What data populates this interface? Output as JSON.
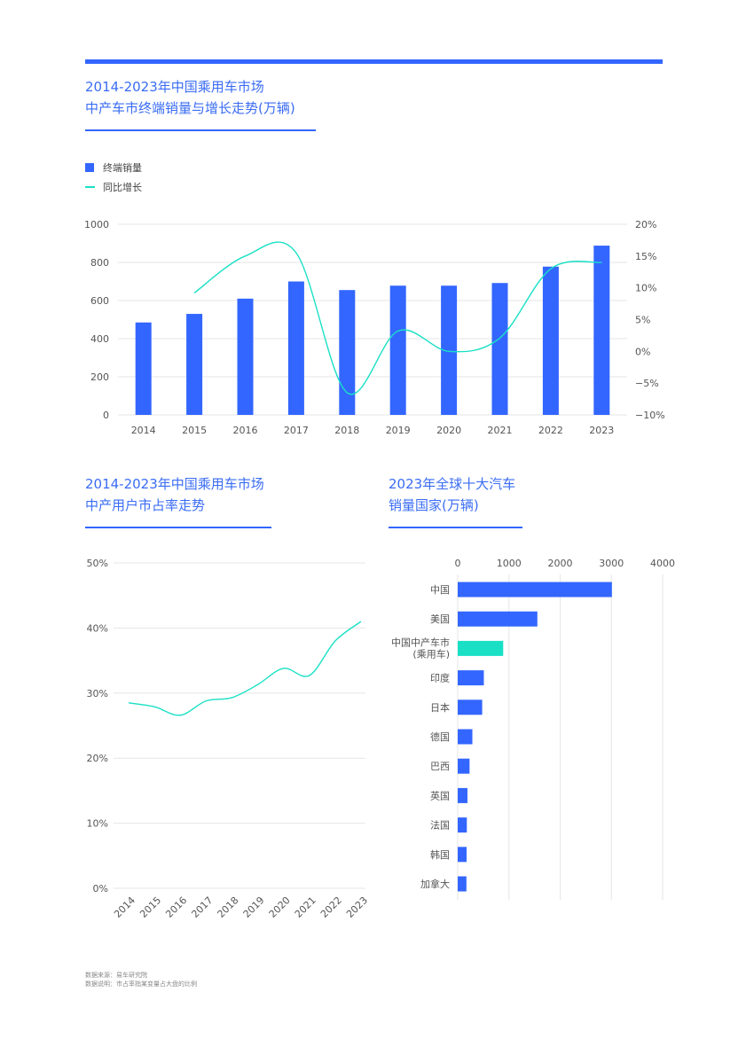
{
  "colors": {
    "accent": "#3366ff",
    "teal": "#19e0c5",
    "grid": "#e6e6e6",
    "title": "#3a6cf4"
  },
  "chart1": {
    "title_line1": "2014-2023年中国乘用车市场",
    "title_line2": "中产车市终端销量与增长走势(万辆)",
    "legend_bar": "终端销量",
    "legend_line": "同比增长"
  },
  "chart2": {
    "title_line1": "2014-2023年中国乘用车市场",
    "title_line2": "中产用户市占率走势"
  },
  "chart3": {
    "title_line1": "2023年全球十大汽车",
    "title_line2": "销量国家(万辆)"
  },
  "notes": {
    "source": "数据来源：易车研究院",
    "explain": "数据说明：市占率指某变量占大盘的比例"
  },
  "chart_data": [
    {
      "type": "bar",
      "title": "2014-2023年中国乘用车市场中产车市终端销量与增长走势(万辆)",
      "categories": [
        "2014",
        "2015",
        "2016",
        "2017",
        "2018",
        "2019",
        "2020",
        "2021",
        "2022",
        "2023"
      ],
      "series": [
        {
          "name": "终端销量",
          "type": "bar",
          "axis": "left",
          "values": [
            485,
            530,
            610,
            700,
            655,
            678,
            678,
            692,
            778,
            888
          ]
        },
        {
          "name": "同比增长",
          "type": "line",
          "axis": "right",
          "values": [
            null,
            9.2,
            15.0,
            15.5,
            -6.5,
            3.2,
            0.0,
            2.1,
            13.0,
            14.0
          ]
        }
      ],
      "ylim": [
        0,
        1000
      ],
      "yticks": [
        0,
        200,
        400,
        600,
        800,
        1000
      ],
      "y2lim": [
        -10,
        20
      ],
      "y2ticks": [
        "−10%",
        "−5%",
        "0%",
        "5%",
        "10%",
        "15%",
        "20%"
      ],
      "grid": true,
      "legend": "top-left"
    },
    {
      "type": "line",
      "title": "2014-2023年中国乘用车市场中产用户市占率走势",
      "categories": [
        "2014",
        "2015",
        "2016",
        "2017",
        "2018",
        "2019",
        "2020",
        "2021",
        "2022",
        "2023"
      ],
      "series": [
        {
          "values": [
            28.5,
            27.9,
            26.6,
            28.8,
            29.3,
            31.3,
            33.8,
            32.7,
            38.0,
            41.0
          ]
        }
      ],
      "ylim": [
        0,
        50
      ],
      "yticks": [
        "0%",
        "10%",
        "20%",
        "30%",
        "40%",
        "50%"
      ],
      "grid": true
    },
    {
      "type": "bar",
      "orientation": "horizontal",
      "title": "2023年全球十大汽车销量国家(万辆)",
      "categories": [
        "中国",
        "美国",
        "中国中产车市(乘用车)",
        "印度",
        "日本",
        "德国",
        "巴西",
        "英国",
        "法国",
        "韩国",
        "加拿大"
      ],
      "category_labels": [
        [
          "中国"
        ],
        [
          "美国"
        ],
        [
          "中国中产车市",
          "(乘用车)"
        ],
        [
          "印度"
        ],
        [
          "日本"
        ],
        [
          "德国"
        ],
        [
          "巴西"
        ],
        [
          "英国"
        ],
        [
          "法国"
        ],
        [
          "韩国"
        ],
        [
          "加拿大"
        ]
      ],
      "values": [
        3010,
        1555,
        888,
        510,
        478,
        286,
        231,
        190,
        178,
        173,
        170
      ],
      "highlight_index": 2,
      "xlim": [
        0,
        4000
      ],
      "xticks": [
        0,
        1000,
        2000,
        3000,
        4000
      ],
      "grid": true
    }
  ]
}
